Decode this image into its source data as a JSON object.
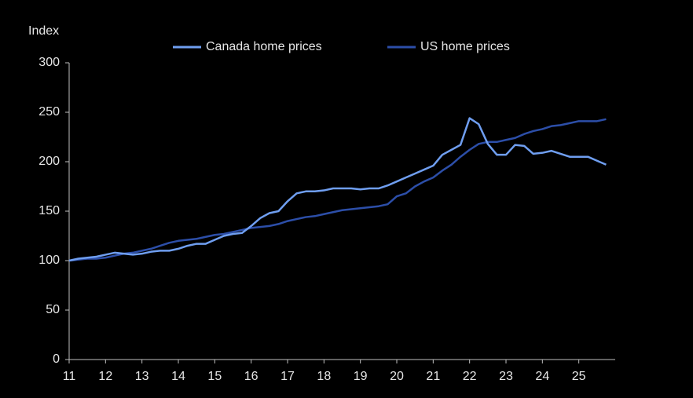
{
  "chart_data": {
    "type": "line",
    "y_label": "Index",
    "x": [
      11,
      11.25,
      11.5,
      11.75,
      12,
      12.25,
      12.5,
      12.75,
      13,
      13.25,
      13.5,
      13.75,
      14,
      14.25,
      14.5,
      14.75,
      15,
      15.25,
      15.5,
      15.75,
      16,
      16.25,
      16.5,
      16.75,
      17,
      17.25,
      17.5,
      17.75,
      18,
      18.25,
      18.5,
      18.75,
      19,
      19.25,
      19.5,
      19.75,
      20,
      20.25,
      20.5,
      20.75,
      21,
      21.25,
      21.5,
      21.75,
      22,
      22.25,
      22.5,
      22.75,
      23,
      23.25,
      23.5,
      23.75,
      24,
      24.25,
      24.5,
      24.75,
      25,
      25.25,
      25.5,
      25.75
    ],
    "series": [
      {
        "name": "Canada home prices",
        "color": "#6f9ef0",
        "values": [
          100,
          102,
          103,
          104,
          106,
          108,
          107,
          106,
          107,
          109,
          110,
          110,
          112,
          115,
          117,
          117,
          121,
          125,
          127,
          128,
          135,
          143,
          148,
          150,
          160,
          168,
          170,
          170,
          171,
          173,
          173,
          173,
          172,
          173,
          173,
          176,
          180,
          184,
          188,
          192,
          196,
          207,
          212,
          217,
          244,
          238,
          218,
          207,
          207,
          217,
          216,
          208,
          209,
          211,
          208,
          205,
          205,
          205,
          201,
          197
        ]
      },
      {
        "name": "US home prices",
        "color": "#2c4ea8",
        "values": [
          100,
          101,
          102,
          102,
          103,
          105,
          107,
          108,
          110,
          112,
          115,
          118,
          120,
          121,
          122,
          124,
          126,
          127,
          129,
          131,
          133,
          134,
          135,
          137,
          140,
          142,
          144,
          145,
          147,
          149,
          151,
          152,
          153,
          154,
          155,
          157,
          165,
          168,
          175,
          180,
          184,
          191,
          197,
          205,
          212,
          218,
          220,
          220,
          222,
          224,
          228,
          231,
          233,
          236,
          237,
          239,
          241,
          241,
          241,
          243
        ]
      }
    ],
    "xlim": [
      11,
      26
    ],
    "xticks": [
      11,
      12,
      13,
      14,
      15,
      16,
      17,
      18,
      19,
      20,
      21,
      22,
      23,
      24,
      25
    ],
    "ylim": [
      0,
      300
    ],
    "yticks": [
      0,
      50,
      100,
      150,
      200,
      250,
      300
    ],
    "grid": false
  }
}
